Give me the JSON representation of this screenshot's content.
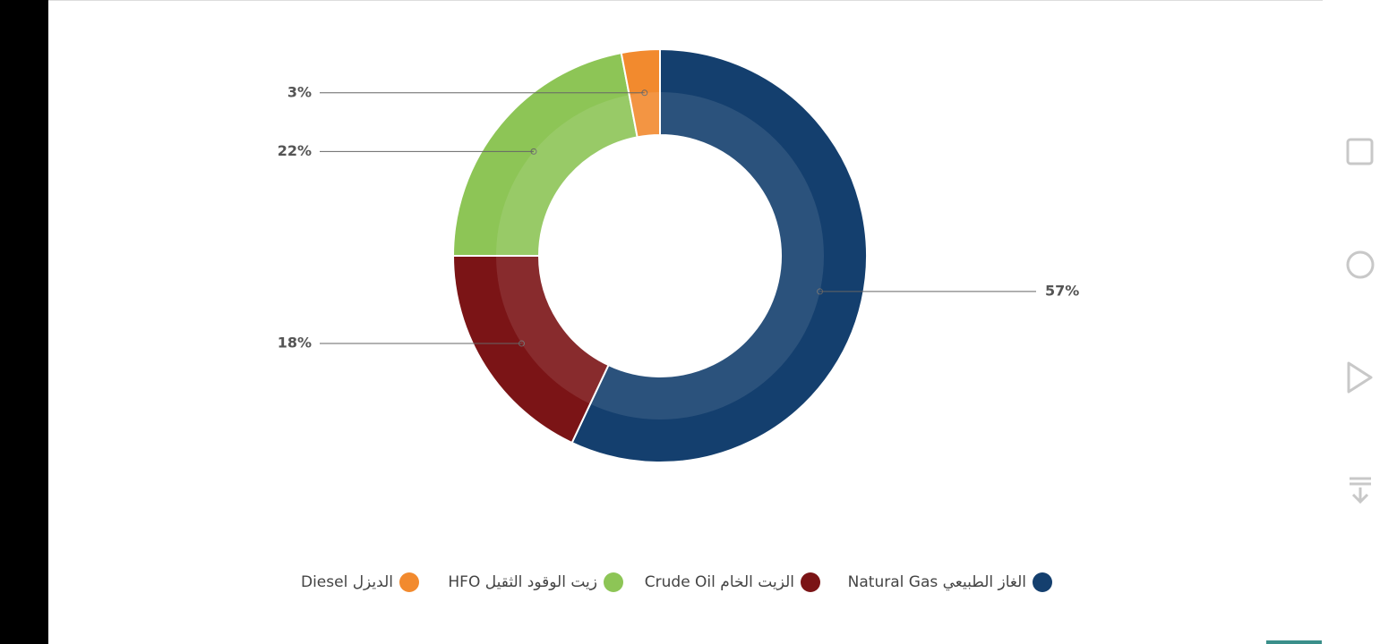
{
  "chart_data": {
    "type": "donut",
    "categories": [
      "الغاز الطبيعي Natural Gas",
      "الزيت الخام Crude Oil",
      "زيت الوقود الثقيل HFO",
      "الديزل Diesel"
    ],
    "values": [
      57,
      18,
      22,
      3
    ],
    "value_labels": [
      "57%",
      "18%",
      "22%",
      "3%"
    ],
    "colors": [
      "#143f6e",
      "#7b1416",
      "#8dc556",
      "#f28a2e"
    ]
  }
}
